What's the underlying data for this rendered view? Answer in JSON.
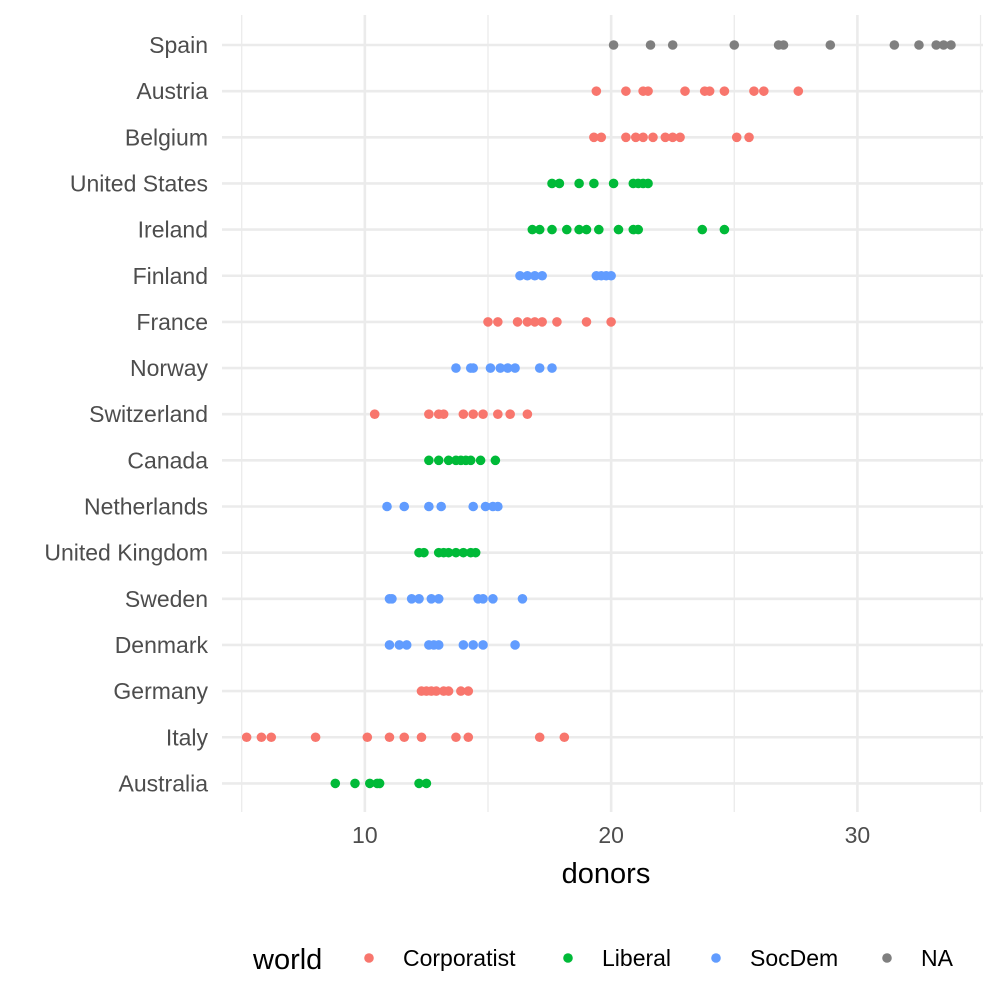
{
  "chart_data": {
    "type": "scatter",
    "xlabel": "donors",
    "ylabel": "",
    "xlim": [
      4.2,
      35.1
    ],
    "x_ticks": [
      10,
      20,
      30
    ],
    "grid": true,
    "legend": {
      "title": "world",
      "placement": "bottom",
      "entries": [
        {
          "name": "Corporatist",
          "color": "#F8766D"
        },
        {
          "name": "Liberal",
          "color": "#00BA38"
        },
        {
          "name": "SocDem",
          "color": "#619CFF"
        },
        {
          "name": "NA",
          "color": "#7F7F7F"
        }
      ]
    },
    "categories": [
      "Spain",
      "Austria",
      "Belgium",
      "United States",
      "Ireland",
      "Finland",
      "France",
      "Norway",
      "Switzerland",
      "Canada",
      "Netherlands",
      "United Kingdom",
      "Sweden",
      "Denmark",
      "Germany",
      "Italy",
      "Australia"
    ],
    "series": [
      {
        "country": "Spain",
        "world": "NA",
        "values": [
          20.1,
          21.6,
          22.5,
          25.0,
          26.8,
          27.0,
          28.9,
          31.5,
          32.5,
          33.2,
          33.5,
          33.8
        ]
      },
      {
        "country": "Austria",
        "world": "Corporatist",
        "values": [
          19.4,
          20.6,
          21.3,
          21.5,
          23.0,
          23.8,
          24.0,
          24.6,
          25.8,
          26.2,
          27.6
        ]
      },
      {
        "country": "Belgium",
        "world": "Corporatist",
        "values": [
          19.3,
          19.6,
          20.6,
          21.0,
          21.3,
          21.7,
          22.2,
          22.5,
          22.8,
          25.1,
          25.6
        ]
      },
      {
        "country": "United States",
        "world": "Liberal",
        "values": [
          17.6,
          17.9,
          18.7,
          19.3,
          20.1,
          20.9,
          21.1,
          21.3,
          21.5
        ]
      },
      {
        "country": "Ireland",
        "world": "Liberal",
        "values": [
          16.8,
          17.1,
          17.6,
          18.2,
          18.7,
          19.0,
          19.5,
          20.3,
          20.9,
          21.1,
          23.7,
          24.6
        ]
      },
      {
        "country": "Finland",
        "world": "SocDem",
        "values": [
          16.3,
          16.6,
          16.9,
          17.2,
          19.4,
          19.6,
          19.8,
          20.0
        ]
      },
      {
        "country": "France",
        "world": "Corporatist",
        "values": [
          15.0,
          15.4,
          16.2,
          16.6,
          16.9,
          17.2,
          17.8,
          19.0,
          20.0
        ]
      },
      {
        "country": "Norway",
        "world": "SocDem",
        "values": [
          13.7,
          14.3,
          14.4,
          15.1,
          15.5,
          15.8,
          16.1,
          17.1,
          17.6
        ]
      },
      {
        "country": "Switzerland",
        "world": "Corporatist",
        "values": [
          10.4,
          12.6,
          13.0,
          13.2,
          14.0,
          14.4,
          14.8,
          15.4,
          15.9,
          16.6
        ]
      },
      {
        "country": "Canada",
        "world": "Liberal",
        "values": [
          12.6,
          13.0,
          13.4,
          13.7,
          13.9,
          14.1,
          14.3,
          14.7,
          15.3
        ]
      },
      {
        "country": "Netherlands",
        "world": "SocDem",
        "values": [
          10.9,
          11.6,
          12.6,
          13.1,
          14.4,
          14.9,
          15.2,
          15.4
        ]
      },
      {
        "country": "United Kingdom",
        "world": "Liberal",
        "values": [
          12.2,
          12.4,
          13.0,
          13.2,
          13.4,
          13.7,
          14.0,
          14.3,
          14.5
        ]
      },
      {
        "country": "Sweden",
        "world": "SocDem",
        "values": [
          11.0,
          11.1,
          11.9,
          12.2,
          12.7,
          13.0,
          14.6,
          14.8,
          15.2,
          16.4
        ]
      },
      {
        "country": "Denmark",
        "world": "SocDem",
        "values": [
          11.0,
          11.4,
          11.7,
          12.6,
          12.8,
          13.0,
          14.0,
          14.4,
          14.8,
          16.1
        ]
      },
      {
        "country": "Germany",
        "world": "Corporatist",
        "values": [
          12.3,
          12.5,
          12.7,
          12.9,
          13.2,
          13.4,
          13.9,
          14.2
        ]
      },
      {
        "country": "Italy",
        "world": "Corporatist",
        "values": [
          5.2,
          5.8,
          6.2,
          8.0,
          10.1,
          11.0,
          11.6,
          12.3,
          13.7,
          14.2,
          17.1,
          18.1
        ]
      },
      {
        "country": "Australia",
        "world": "Liberal",
        "values": [
          8.8,
          9.6,
          10.2,
          10.5,
          10.6,
          12.2,
          12.5
        ]
      }
    ]
  }
}
